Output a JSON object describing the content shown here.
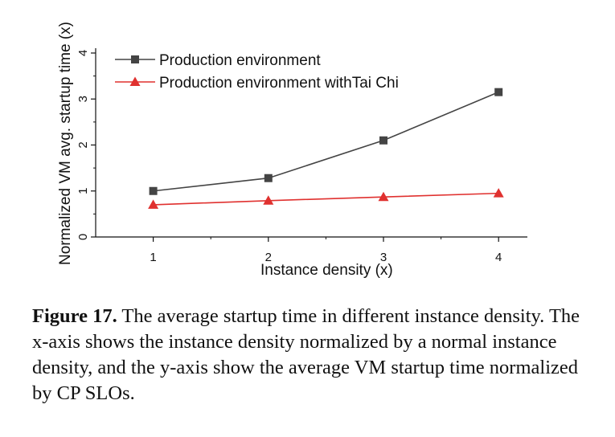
{
  "chart_data": {
    "type": "line",
    "xlabel": "Instance density (x)",
    "ylabel": "Normalized VM avg. startup time (x)",
    "x": [
      1,
      2,
      3,
      4
    ],
    "xlim": [
      0.5,
      4.25
    ],
    "ylim": [
      0,
      4
    ],
    "xticks": [
      "1",
      "2",
      "3",
      "4"
    ],
    "yticks": [
      "0",
      "1",
      "2",
      "3",
      "4"
    ],
    "legend_position": "top-left",
    "grid": false,
    "series": [
      {
        "name": "Production environment",
        "values": [
          1.0,
          1.28,
          2.1,
          3.15
        ],
        "color": "#444444",
        "marker": "square"
      },
      {
        "name": "Production environment withTai Chi",
        "values": [
          0.7,
          0.79,
          0.87,
          0.95
        ],
        "color": "#e0312f",
        "marker": "triangle"
      }
    ]
  },
  "caption": {
    "label": "Figure 17.",
    "text": "The average startup time in different instance density. The x-axis shows the instance density normalized by a normal instance density, and the y-axis show the average VM startup time normalized by CP SLOs."
  }
}
